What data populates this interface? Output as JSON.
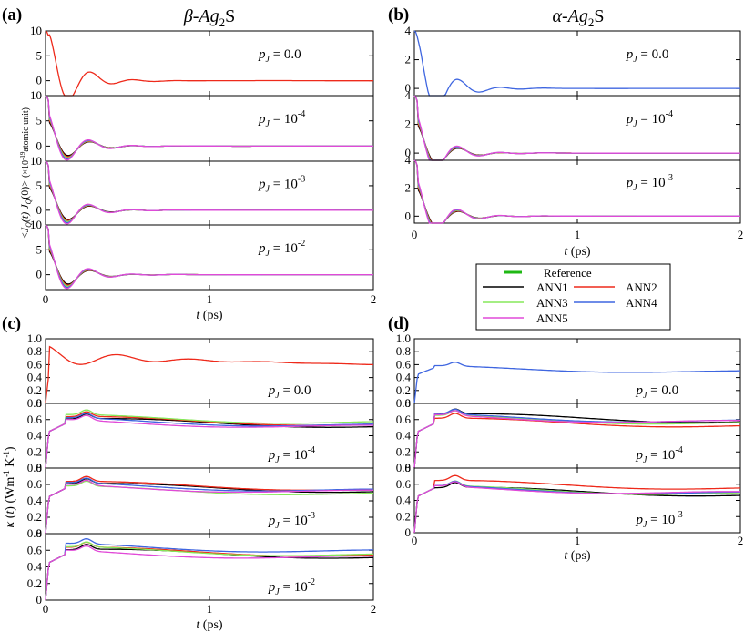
{
  "colors": {
    "ANN1": "#000000",
    "ANN2": "#ee2a1b",
    "ANN3": "#86e85a",
    "ANN4": "#3f66e0",
    "ANN5": "#e14ad8",
    "Reference": "#1fb814"
  },
  "headers": {
    "beta_title": "β-Ag",
    "beta_sub": "2",
    "beta_tail": "S",
    "alpha_title": "α-Ag",
    "alpha_sub": "2",
    "alpha_tail": "S"
  },
  "legend": {
    "reference": "Reference",
    "ann1": "ANN1",
    "ann2": "ANN2",
    "ann3": "ANN3",
    "ann4": "ANN4",
    "ann5": "ANN5"
  },
  "chart_data": [
    {
      "id": "a",
      "label": "(a)",
      "type": "line",
      "title": "β-Ag2S",
      "xlabel": "t (ps)",
      "ylabel": "<J_Q(t) J_Q(0)> (×10^-19 atomic unit)",
      "xlim": [
        0,
        2
      ],
      "x_ticks": [
        "0",
        "1",
        "2"
      ],
      "panels": [
        {
          "pj": "0.0",
          "ylim": [
            -3,
            10
          ],
          "y_ticks": [
            0,
            5,
            10
          ],
          "series": [
            "ANN2"
          ]
        },
        {
          "pj": "10^-4",
          "ylim": [
            -3,
            10
          ],
          "y_ticks": [
            0,
            5,
            10
          ],
          "series": [
            "ANN1",
            "ANN2",
            "ANN3",
            "ANN4",
            "ANN5"
          ]
        },
        {
          "pj": "10^-3",
          "ylim": [
            -3,
            10
          ],
          "y_ticks": [
            0,
            5,
            10
          ],
          "series": [
            "ANN1",
            "ANN2",
            "ANN3",
            "ANN4",
            "ANN5"
          ]
        },
        {
          "pj": "10^-2",
          "ylim": [
            -3,
            10
          ],
          "y_ticks": [
            0,
            5,
            10
          ],
          "series": [
            "ANN1",
            "ANN2",
            "ANN3",
            "ANN4",
            "ANN5"
          ]
        }
      ]
    },
    {
      "id": "b",
      "label": "(b)",
      "type": "line",
      "title": "α-Ag2S",
      "xlabel": "t (ps)",
      "xlim": [
        0,
        2
      ],
      "x_ticks": [
        "0",
        "1",
        "2"
      ],
      "panels": [
        {
          "pj": "0.0",
          "ylim": [
            -0.5,
            4
          ],
          "y_ticks": [
            0,
            2,
            4
          ],
          "series": [
            "ANN4"
          ]
        },
        {
          "pj": "10^-4",
          "ylim": [
            -0.5,
            4
          ],
          "y_ticks": [
            0,
            2,
            4
          ],
          "series": [
            "ANN1",
            "ANN2",
            "ANN3",
            "ANN4",
            "ANN5"
          ]
        },
        {
          "pj": "10^-3",
          "ylim": [
            -0.5,
            4
          ],
          "y_ticks": [
            0,
            2,
            4
          ],
          "series": [
            "ANN1",
            "ANN2",
            "ANN3",
            "ANN4",
            "ANN5"
          ]
        }
      ]
    },
    {
      "id": "c",
      "label": "(c)",
      "type": "line",
      "ylabel": "κ(t) (Wm^-1 K^-1)",
      "xlabel": "t (ps)",
      "xlim": [
        0,
        2
      ],
      "x_ticks": [
        "0",
        "1",
        "2"
      ],
      "panels": [
        {
          "pj": "0.0",
          "ylim": [
            0,
            1.0
          ],
          "y_ticks": [
            "0",
            "0.2",
            "0.4",
            "0.6",
            "0.8",
            "1.0"
          ],
          "series": [
            "ANN2"
          ]
        },
        {
          "pj": "10^-4",
          "ylim": [
            0,
            0.8
          ],
          "y_ticks": [
            "0",
            "0.2",
            "0.4",
            "0.6",
            "0.8"
          ],
          "series": [
            "ANN1",
            "ANN2",
            "ANN3",
            "ANN4",
            "ANN5"
          ]
        },
        {
          "pj": "10^-3",
          "ylim": [
            0,
            0.8
          ],
          "y_ticks": [
            "0",
            "0.2",
            "0.4",
            "0.6",
            "0.8"
          ],
          "series": [
            "ANN1",
            "ANN2",
            "ANN3",
            "ANN4",
            "ANN5"
          ]
        },
        {
          "pj": "10^-2",
          "ylim": [
            0,
            0.8
          ],
          "y_ticks": [
            "0",
            "0.2",
            "0.4",
            "0.6",
            "0.8"
          ],
          "series": [
            "ANN1",
            "ANN2",
            "ANN3",
            "ANN4",
            "ANN5"
          ]
        }
      ]
    },
    {
      "id": "d",
      "label": "(d)",
      "type": "line",
      "xlabel": "t (ps)",
      "xlim": [
        0,
        2
      ],
      "x_ticks": [
        "0",
        "1",
        "2"
      ],
      "panels": [
        {
          "pj": "0.0",
          "ylim": [
            0,
            1.0
          ],
          "y_ticks": [
            "0",
            "0.2",
            "0.4",
            "0.6",
            "0.8",
            "1.0"
          ],
          "series": [
            "ANN4"
          ]
        },
        {
          "pj": "10^-4",
          "ylim": [
            0,
            0.8
          ],
          "y_ticks": [
            "0",
            "0.2",
            "0.4",
            "0.6",
            "0.8"
          ],
          "series": [
            "ANN1",
            "ANN2",
            "ANN3",
            "ANN4",
            "ANN5"
          ]
        },
        {
          "pj": "10^-3",
          "ylim": [
            0,
            0.8
          ],
          "y_ticks": [
            "0",
            "0.2",
            "0.4",
            "0.6",
            "0.8"
          ],
          "series": [
            "ANN1",
            "ANN2",
            "ANN3",
            "ANN4",
            "ANN5"
          ]
        }
      ]
    }
  ]
}
